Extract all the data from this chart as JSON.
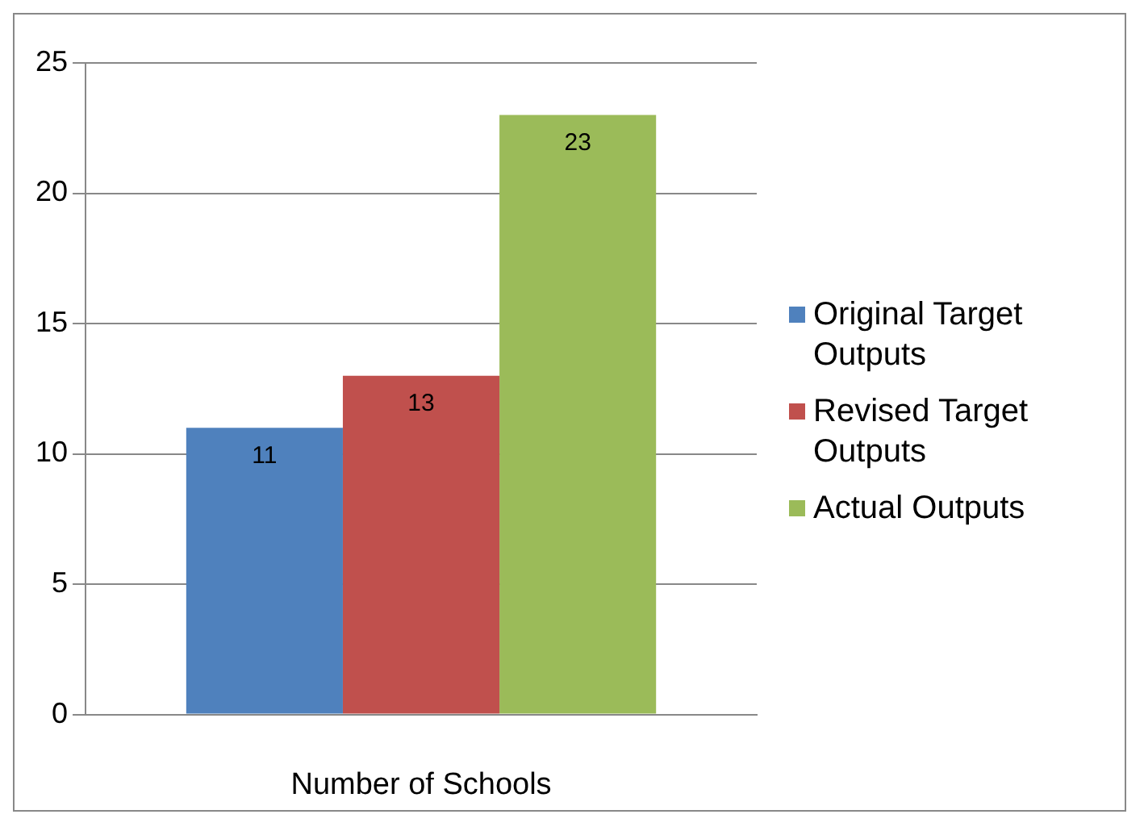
{
  "chart_data": {
    "type": "bar",
    "xlabel": "Number of Schools",
    "categories": [
      null
    ],
    "series": [
      {
        "name": "Original Target Outputs",
        "color": "#4f81bd",
        "values": [
          11
        ]
      },
      {
        "name": "Revised Target Outputs",
        "color": "#c0504d",
        "values": [
          13
        ]
      },
      {
        "name": "Actual Outputs",
        "color": "#9bbb59",
        "values": [
          23
        ]
      }
    ],
    "ylim": [
      0,
      25
    ],
    "yticks": [
      0,
      5,
      10,
      15,
      20,
      25
    ],
    "grid": "y",
    "legend": "right",
    "data_labels": true
  }
}
